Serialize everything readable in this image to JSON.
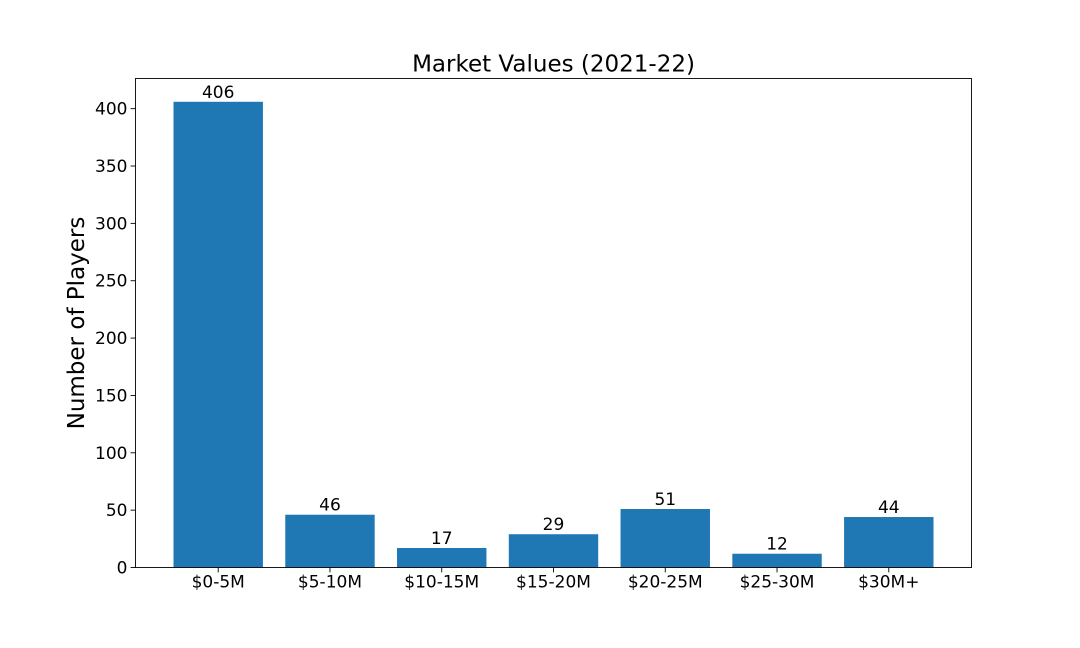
{
  "chart_data": {
    "type": "bar",
    "title": "Market Values (2021-22)",
    "xlabel": "",
    "ylabel": "Number of Players",
    "categories": [
      "$0-5M",
      "$5-10M",
      "$10-15M",
      "$15-20M",
      "$20-25M",
      "$25-30M",
      "$30M+"
    ],
    "values": [
      406,
      46,
      17,
      29,
      51,
      12,
      44
    ],
    "ylim": [
      0,
      426.3
    ],
    "yticks": [
      0,
      50,
      100,
      150,
      200,
      250,
      300,
      350,
      400
    ],
    "ytick_labels": [
      "0",
      "50",
      "100",
      "150",
      "200",
      "250",
      "300",
      "350",
      "400"
    ],
    "bar_color": "#1f77b4",
    "data_labels": true,
    "grid": false,
    "legend": false
  }
}
